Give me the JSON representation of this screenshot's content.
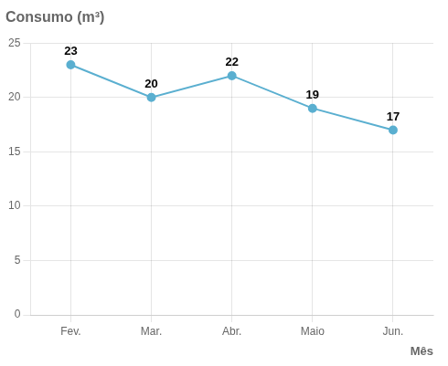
{
  "chart_data": {
    "type": "line",
    "title": "Consumo (m³)",
    "xlabel": "Mês",
    "categories": [
      "Fev.",
      "Mar.",
      "Abr.",
      "Maio",
      "Jun."
    ],
    "values": [
      23,
      20,
      22,
      19,
      17
    ],
    "color": "#5aafd0",
    "marker": "circle",
    "ylim": [
      0,
      25
    ],
    "yticks": [
      0,
      5,
      10,
      15,
      20,
      25
    ],
    "grid": true,
    "data_labels": true
  }
}
